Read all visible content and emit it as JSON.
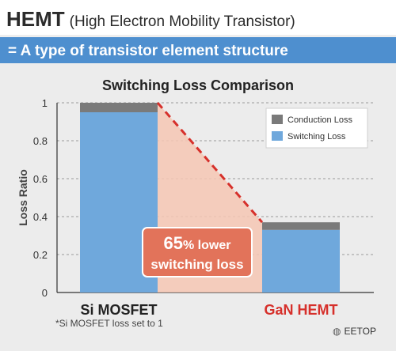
{
  "header": {
    "title_main": "HEMT",
    "title_paren": "(High Electron Mobility Transistor)",
    "subtitle": "= A type of transistor element structure"
  },
  "footnote": "*Si MOSFET loss set to 1",
  "watermark": "EETOP",
  "colors": {
    "accent_blue": "#4e8fcf",
    "switching": "#6fa8dc",
    "conduction": "#7a7a7a",
    "callout": "#e2735a",
    "shade": "#f6c7b4",
    "gan_label": "#d6302b",
    "dashed_line": "#d6302b"
  },
  "chart_data": {
    "type": "bar",
    "stacked": true,
    "title": "Switching Loss Comparison",
    "ylabel": "Loss Ratio",
    "ylim": [
      0,
      1
    ],
    "yticks": [
      "0",
      "0.2",
      "0.4",
      "0.6",
      "0.8",
      "1"
    ],
    "categories": [
      "Si MOSFET",
      "GaN HEMT"
    ],
    "series": [
      {
        "name": "Switching Loss",
        "values": [
          0.95,
          0.33
        ]
      },
      {
        "name": "Conduction Loss",
        "values": [
          0.05,
          0.04
        ]
      }
    ],
    "annotation": {
      "value": "65",
      "unit": "% lower",
      "line2": "switching loss"
    },
    "grid": true,
    "legend_position": "top-right"
  }
}
